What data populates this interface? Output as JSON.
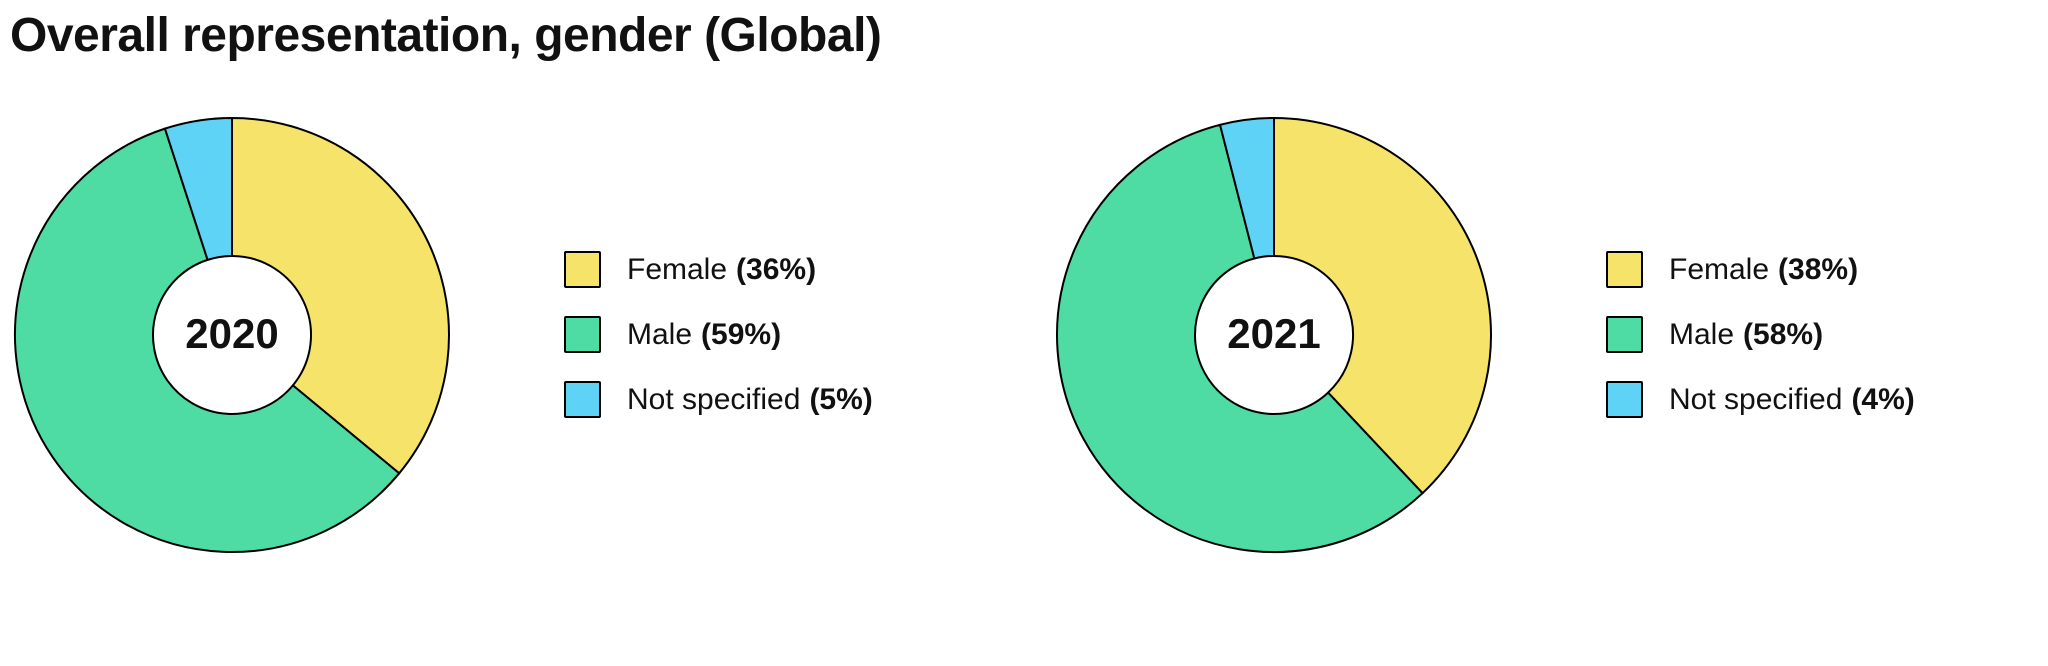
{
  "title": "Overall representation, gender (Global)",
  "stroke_color": "#000000",
  "chart_data": [
    {
      "type": "pie",
      "subtype": "donut",
      "center_label": "2020",
      "categories": [
        "Female",
        "Male",
        "Not specified"
      ],
      "values": [
        36,
        59,
        5
      ],
      "colors": [
        "#F6E36A",
        "#4FDBA4",
        "#5ED3F6"
      ],
      "start_angle_deg": 0,
      "direction": "clockwise",
      "legend": {
        "position": "right",
        "items": [
          {
            "label": "Female",
            "value_label": "(36%)"
          },
          {
            "label": "Male",
            "value_label": "(59%)"
          },
          {
            "label": "Not specified",
            "value_label": "(5%)"
          }
        ]
      }
    },
    {
      "type": "pie",
      "subtype": "donut",
      "center_label": "2021",
      "categories": [
        "Female",
        "Male",
        "Not specified"
      ],
      "values": [
        38,
        58,
        4
      ],
      "colors": [
        "#F6E36A",
        "#4FDBA4",
        "#5ED3F6"
      ],
      "start_angle_deg": 0,
      "direction": "clockwise",
      "legend": {
        "position": "right",
        "items": [
          {
            "label": "Female",
            "value_label": "(38%)"
          },
          {
            "label": "Male",
            "value_label": "(58%)"
          },
          {
            "label": "Not specified",
            "value_label": "(4%)"
          }
        ]
      }
    }
  ]
}
